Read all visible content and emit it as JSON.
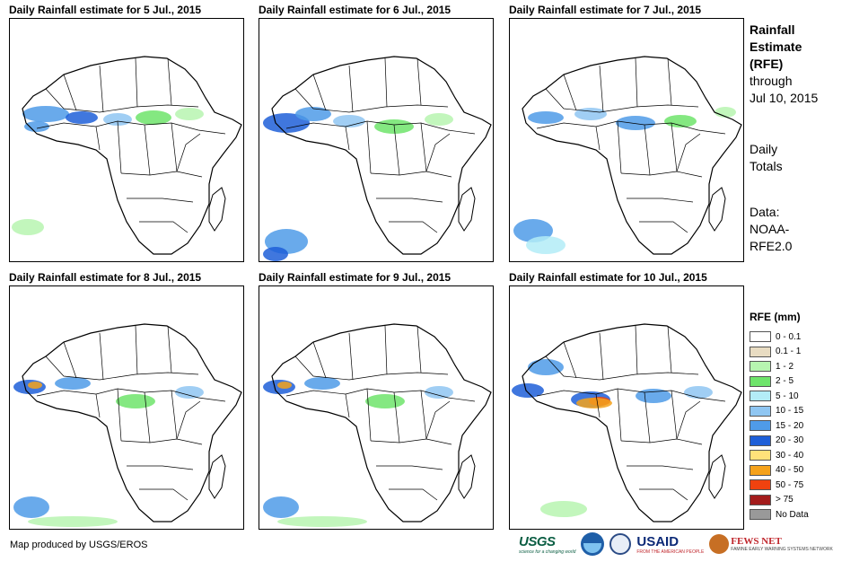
{
  "panels": [
    {
      "title": "Daily Rainfall estimate for 5 Jul., 2015",
      "rain_profile": "west-sahel"
    },
    {
      "title": "Daily Rainfall estimate for 6 Jul., 2015",
      "rain_profile": "west-coast-heavy"
    },
    {
      "title": "Daily Rainfall estimate for 7 Jul., 2015",
      "rain_profile": "central-belt"
    },
    {
      "title": "Daily Rainfall estimate for 8 Jul., 2015",
      "rain_profile": "west-coast-orange"
    },
    {
      "title": "Daily Rainfall estimate for 9 Jul., 2015",
      "rain_profile": "west-coast-orange"
    },
    {
      "title": "Daily Rainfall estimate for 10 Jul., 2015",
      "rain_profile": "congo-orange"
    }
  ],
  "sidebar": {
    "title_line1": "Rainfall",
    "title_line2": "Estimate",
    "title_line3": "(RFE)",
    "through_label": "through",
    "through_date": "Jul 10, 2015",
    "totals_line1": "Daily",
    "totals_line2": "Totals",
    "data_line1": "Data:",
    "data_line2": "NOAA-",
    "data_line3": "RFE2.0"
  },
  "legend": {
    "title": "RFE (mm)",
    "items": [
      {
        "label": "0 - 0.1",
        "color": "#ffffff"
      },
      {
        "label": "0.1 - 1",
        "color": "#e8dcc2"
      },
      {
        "label": "1 - 2",
        "color": "#b7f5b0"
      },
      {
        "label": "2 - 5",
        "color": "#6ee46b"
      },
      {
        "label": "5 - 10",
        "color": "#b3ecf7"
      },
      {
        "label": "10 - 15",
        "color": "#8fc6f2"
      },
      {
        "label": "15 - 20",
        "color": "#4f9be8"
      },
      {
        "label": "20 - 30",
        "color": "#1e5fd8"
      },
      {
        "label": "30 - 40",
        "color": "#ffe27a"
      },
      {
        "label": "40 - 50",
        "color": "#f5a21b"
      },
      {
        "label": "50 - 75",
        "color": "#f0420f"
      },
      {
        "label": "> 75",
        "color": "#a31c1c"
      },
      {
        "label": "No Data",
        "color": "#999999"
      }
    ]
  },
  "footer": {
    "credit": "Map produced by USGS/EROS",
    "logo_usgs": "USGS",
    "logo_usgs_tagline": "science for a changing world",
    "logo_usaid": "USAID",
    "logo_usaid_tagline": "FROM THE AMERICAN PEOPLE",
    "logo_fews": "FEWS NET",
    "logo_fews_tagline": "FAMINE EARLY WARNING SYSTEMS NETWORK"
  }
}
